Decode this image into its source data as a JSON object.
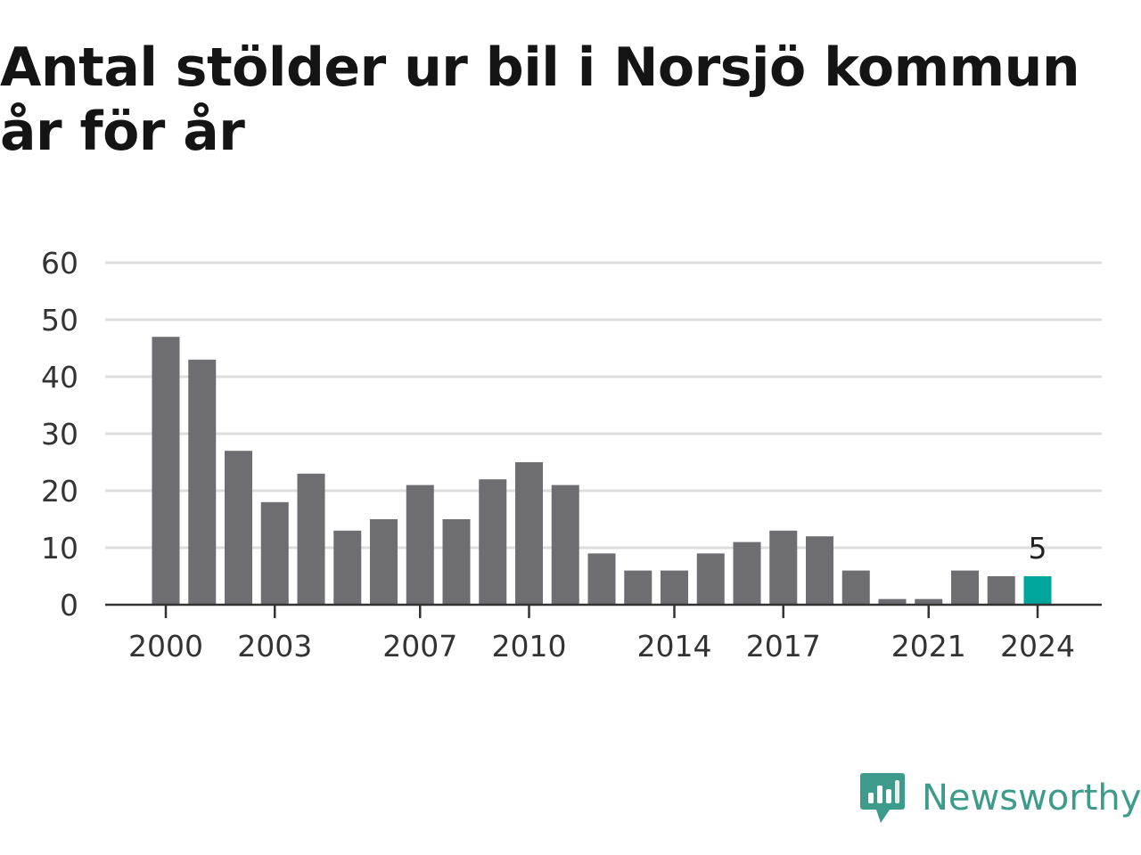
{
  "title": "Antal stölder ur bil i Norsjö kommun år för år",
  "brand": {
    "name": "Newsworthy",
    "icon": "newsworthy-logo-icon",
    "color": "#3d9b8b"
  },
  "colors": {
    "bar": "#6e6d72",
    "highlight": "#00a59b",
    "grid": "#dddddd",
    "axis": "#333333"
  },
  "chart_data": {
    "type": "bar",
    "title": "Antal stölder ur bil i Norsjö kommun år för år",
    "xlabel": "",
    "ylabel": "",
    "ylim": [
      0,
      60
    ],
    "yticks": [
      0,
      10,
      20,
      30,
      40,
      50,
      60
    ],
    "xtick_labels": [
      "2000",
      "2003",
      "2007",
      "2010",
      "2014",
      "2017",
      "2021",
      "2024"
    ],
    "categories": [
      2000,
      2001,
      2002,
      2003,
      2004,
      2005,
      2006,
      2007,
      2008,
      2009,
      2010,
      2011,
      2012,
      2013,
      2014,
      2015,
      2016,
      2017,
      2018,
      2019,
      2020,
      2021,
      2022,
      2023,
      2024
    ],
    "values": [
      47,
      43,
      27,
      18,
      23,
      13,
      15,
      21,
      15,
      22,
      25,
      21,
      9,
      6,
      6,
      9,
      11,
      13,
      12,
      6,
      1,
      1,
      6,
      5,
      5
    ],
    "highlight": {
      "category": 2024,
      "label": "5"
    },
    "grid": true,
    "legend": "none"
  }
}
